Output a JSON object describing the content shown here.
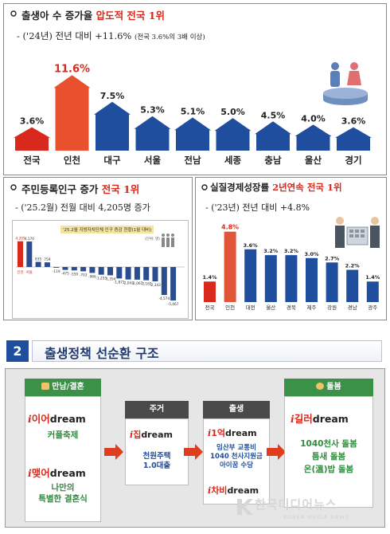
{
  "panel1": {
    "title_prefix": "출생아 수 증가율 ",
    "title_highlight": "압도적 전국 1위",
    "subtitle_main": "- ('24년) 전년 대비 +11.6% ",
    "subtitle_note": "(전국 3.6%의 3배 이상)"
  },
  "panel2": {
    "title_prefix": "주민등록인구 증가 ",
    "title_highlight": "전국 1위",
    "subtitle": "- ('25.2월) 전월 대비 4,205명 증가",
    "inset_title": "'25.2월 지방자치단체 인구 증감 현황(1월 대비)",
    "inset_unit": "(단위: 명)"
  },
  "panel3": {
    "title_prefix": "실질경제성장률 ",
    "title_highlight": "2년연속 전국 1위",
    "subtitle": "- ('23년) 전년 대비 +4.8%"
  },
  "section2": {
    "number": "2",
    "title": "출생정책 선순환 구조"
  },
  "flow": {
    "col1": {
      "header": "만남/결혼",
      "brand1_e": "i",
      "brand1_k": "이어",
      "brand1_dream": "dream",
      "text1": "커플축제",
      "brand2_e": "i",
      "brand2_k": "맺어",
      "brand2_dream": "dream",
      "text2_line1": "나만의",
      "text2_line2": "특별한 결혼식"
    },
    "col2": {
      "header": "주거",
      "brand_e": "i",
      "brand_k": "집",
      "brand_dream": "dream",
      "text_line1": "천원주택",
      "text_line2": "1.0대출"
    },
    "col3": {
      "header": "출생",
      "brand1_e": "i",
      "brand1_k": "1억",
      "brand1_dream": "dream",
      "text_line1": "임산부 교통비",
      "text_line2": "1040 천사지원금",
      "text_line3": "아이꿈 수당",
      "brand2_e": "i",
      "brand2_k": "차비",
      "brand2_dream": "dream"
    },
    "col4": {
      "header": "돌봄",
      "brand_e": "i",
      "brand_k": "길러",
      "brand_dream": "dream",
      "text_line1": "1040천사 돌봄",
      "text_line2": "틈새 돌봄",
      "text_line3": "온(溫)밥 돌봄"
    }
  },
  "watermark": {
    "main": "한국미디어뉴스",
    "sub": "KOREA MEDIA NEWS"
  },
  "colors": {
    "accent_red": "#d8291c",
    "region_blue": "#1f4e9e",
    "green": "#2f8a3c"
  },
  "chart_data": [
    {
      "type": "bar",
      "categories": [
        "전국",
        "인천",
        "대구",
        "서울",
        "전남",
        "세종",
        "충남",
        "울산",
        "경기"
      ],
      "values": [
        3.6,
        11.6,
        7.5,
        5.3,
        5.1,
        5.0,
        4.5,
        4.0,
        3.6
      ],
      "labels": [
        "3.6%",
        "11.6%",
        "7.5%",
        "5.3%",
        "5.1%",
        "5.0%",
        "4.5%",
        "4.0%",
        "3.6%"
      ]
    },
    {
      "type": "bar",
      "values": [
        4205,
        4170,
        835,
        759,
        -119,
        -475,
        -559,
        -703,
        -966,
        -1255,
        -1354,
        -1871,
        -2043,
        -2067,
        -2165,
        -2343,
        -4574,
        -5467
      ],
      "labels": [
        "4,205",
        "4,170",
        "835",
        "759",
        "-119",
        "-475",
        "-559",
        "-703",
        "-966",
        "-1,255",
        "-1,354",
        "-1,871",
        "-2,043",
        "-2,067",
        "-2,165",
        "-2,343",
        "-4,574",
        "-5,467"
      ],
      "categories": [
        "인천",
        "서울",
        "",
        "",
        "",
        "",
        "",
        "",
        "",
        "",
        "",
        "",
        "",
        "",
        "",
        "",
        "",
        ""
      ]
    },
    {
      "type": "bar",
      "categories": [
        "전국",
        "인천",
        "대전",
        "울산",
        "경북",
        "제주",
        "강원",
        "경남",
        "광주"
      ],
      "values": [
        1.4,
        4.8,
        3.6,
        3.2,
        3.2,
        3.0,
        2.7,
        2.2,
        1.4
      ],
      "labels": [
        "1.4%",
        "4.8%",
        "3.6%",
        "3.2%",
        "3.2%",
        "3.0%",
        "2.7%",
        "2.2%",
        "1.4%"
      ]
    }
  ]
}
